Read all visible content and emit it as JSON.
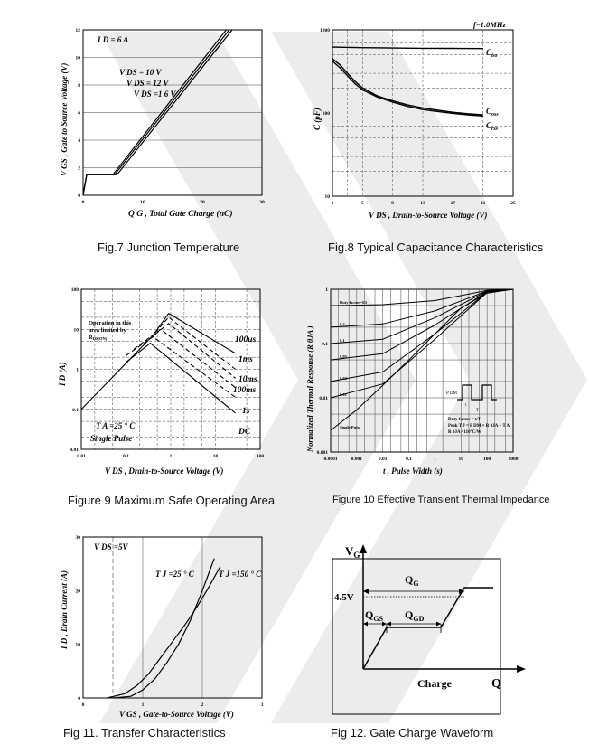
{
  "captions": {
    "fig7": "Fig.7 Junction Temperature",
    "fig8": "Fig.8 Typical Capacitance Characteristics",
    "fig9": "Figure 9 Maximum Safe Operating Area",
    "fig10": "Figure 10 Effective Transient Thermal Impedance",
    "fig11": "Fig 11. Transfer Characteristics",
    "fig12": "Fig 12. Gate Charge Waveform"
  },
  "chart_data": [
    {
      "id": "fig7",
      "type": "line",
      "xlabel": "Q G , Total Gate Charge (nC)",
      "ylabel": "V GS , Gate to Source Voltage (V)",
      "xlim": [
        0,
        30
      ],
      "ylim": [
        0,
        12
      ],
      "xticks": [
        "0",
        "10",
        "20",
        "30"
      ],
      "yticks": [
        "0",
        "2",
        "4",
        "6",
        "8",
        "10",
        "12"
      ],
      "annotations": [
        "I D = 6 A",
        "V DS = 10 V",
        "V DS = 12 V",
        "V DS =1 6 V"
      ],
      "series": [
        {
          "name": "V DS = 10 V",
          "x": [
            0,
            0.6,
            5.0,
            24.0
          ],
          "y": [
            0,
            1.5,
            1.5,
            12
          ]
        },
        {
          "name": "V DS = 12 V",
          "x": [
            0,
            0.6,
            5.3,
            24.5
          ],
          "y": [
            0,
            1.5,
            1.5,
            12
          ]
        },
        {
          "name": "V DS =1 6 V",
          "x": [
            0,
            0.6,
            5.7,
            25.0
          ],
          "y": [
            0,
            1.5,
            1.5,
            12
          ]
        }
      ]
    },
    {
      "id": "fig8",
      "type": "line",
      "title": "f=1.0MHz",
      "xlabel": "V DS , Drain-to-Source Voltage (V)",
      "ylabel": "C (pF)",
      "xlim": [
        1,
        25
      ],
      "ylim": [
        10,
        1000
      ],
      "yscale": "log",
      "xticks": [
        "1",
        "5",
        "9",
        "13",
        "17",
        "21",
        "25"
      ],
      "yticks": [
        "10",
        "100",
        "1000"
      ],
      "series": [
        {
          "name": "C iss",
          "x": [
            1,
            5,
            9,
            13,
            17,
            21
          ],
          "y": [
            620,
            610,
            605,
            600,
            598,
            595
          ]
        },
        {
          "name": "C oss",
          "x": [
            1,
            2,
            3,
            4,
            5,
            7,
            9,
            11,
            13,
            15,
            17,
            19,
            21
          ],
          "y": [
            450,
            380,
            300,
            240,
            200,
            160,
            140,
            125,
            115,
            108,
            102,
            98,
            95
          ]
        },
        {
          "name": "C rss",
          "x": [
            1,
            2,
            3,
            4,
            5,
            7,
            9,
            11,
            13,
            15,
            17,
            19,
            21
          ],
          "y": [
            420,
            350,
            280,
            225,
            190,
            155,
            135,
            120,
            110,
            104,
            99,
            95,
            92
          ]
        }
      ]
    },
    {
      "id": "fig9",
      "type": "line",
      "xlabel": "V DS , Drain-to-Source Voltage (V)",
      "ylabel": "I D (A)",
      "xscale": "log",
      "yscale": "log",
      "xlim": [
        0.01,
        100
      ],
      "ylim": [
        0.01,
        100
      ],
      "xticks": [
        "0.01",
        "0.1",
        "1",
        "10",
        "100"
      ],
      "yticks": [
        "0.01",
        "0.1",
        "1",
        "10",
        "100"
      ],
      "annotations": [
        "Operation in this area limited by R DS(ON)",
        "T A =25 ° C",
        "Single Pulse"
      ],
      "series": [
        {
          "name": "100us",
          "x": [
            0.01,
            0.4,
            0.9,
            28
          ],
          "y": [
            0.1,
            7,
            25,
            2.5
          ]
        },
        {
          "name": "1ms",
          "x": [
            0.35,
            0.9,
            28
          ],
          "y": [
            6,
            20,
            1.0
          ]
        },
        {
          "name": "10ms",
          "x": [
            0.25,
            0.9,
            28
          ],
          "y": [
            4.5,
            14,
            0.6
          ]
        },
        {
          "name": "100ms",
          "x": [
            0.15,
            0.6,
            28
          ],
          "y": [
            3.2,
            10,
            0.35
          ]
        },
        {
          "name": "1s",
          "x": [
            0.1,
            0.4,
            28
          ],
          "y": [
            2.2,
            6.5,
            0.2
          ]
        },
        {
          "name": "DC",
          "x": [
            0.1,
            0.35,
            28
          ],
          "y": [
            1.5,
            4.5,
            0.08
          ]
        }
      ]
    },
    {
      "id": "fig10",
      "type": "line",
      "xlabel": "t , Pulse Width (s)",
      "ylabel": "Normalized Thermal Response (R θJA )",
      "xscale": "log",
      "yscale": "log",
      "xlim": [
        0.0001,
        1000
      ],
      "ylim": [
        0.001,
        1
      ],
      "xticks": [
        "0.0001",
        "0.001",
        "0.01",
        "0.1",
        "1",
        "10",
        "100",
        "1000"
      ],
      "yticks": [
        "0.001",
        "0.01",
        "0.1",
        "1"
      ],
      "annotations": [
        "Duty factor = t/T",
        "Peak T J = P DM × R θJA + T A",
        "R θJA =110°C/W",
        "P DM",
        "t",
        "T"
      ],
      "series": [
        {
          "name": "Duty factor=0.5",
          "x": [
            0.0001,
            0.01,
            1,
            100,
            1000
          ],
          "y": [
            0.5,
            0.52,
            0.62,
            0.95,
            1
          ]
        },
        {
          "name": "0.2",
          "x": [
            0.0001,
            0.01,
            1,
            100,
            1000
          ],
          "y": [
            0.2,
            0.23,
            0.4,
            0.93,
            1
          ]
        },
        {
          "name": "0.1",
          "x": [
            0.0001,
            0.01,
            1,
            100,
            1000
          ],
          "y": [
            0.1,
            0.12,
            0.3,
            0.92,
            1
          ]
        },
        {
          "name": "0.05",
          "x": [
            0.0001,
            0.01,
            1,
            100,
            1000
          ],
          "y": [
            0.05,
            0.065,
            0.22,
            0.9,
            1
          ]
        },
        {
          "name": "0.02",
          "x": [
            0.0001,
            0.01,
            1,
            100,
            1000
          ],
          "y": [
            0.02,
            0.03,
            0.15,
            0.88,
            1
          ]
        },
        {
          "name": "0.01",
          "x": [
            0.0001,
            0.01,
            1,
            100,
            1000
          ],
          "y": [
            0.01,
            0.018,
            0.12,
            0.87,
            1
          ]
        },
        {
          "name": "Single Pulse",
          "x": [
            0.0001,
            0.001,
            0.01,
            0.1,
            1,
            10,
            100,
            1000
          ],
          "y": [
            0.0025,
            0.006,
            0.017,
            0.05,
            0.15,
            0.45,
            0.85,
            1
          ]
        }
      ]
    },
    {
      "id": "fig11",
      "type": "line",
      "xlabel": "V GS , Gate-to-Source Voltage (V)",
      "ylabel": "I D , Drain Current (A)",
      "xlim": [
        0,
        3
      ],
      "ylim": [
        0,
        30
      ],
      "xticks": [
        "0",
        "1",
        "2",
        "3"
      ],
      "yticks": [
        "0",
        "10",
        "20",
        "30"
      ],
      "annotations": [
        "V DS =5V",
        "T J =25 ° C",
        "T J =150 ° C"
      ],
      "series": [
        {
          "name": "T J =25 ° C",
          "x": [
            0.5,
            0.8,
            1.0,
            1.2,
            1.4,
            1.6,
            1.8,
            2.0,
            2.2
          ],
          "y": [
            0,
            0.3,
            1.5,
            3.5,
            6.5,
            10,
            14.5,
            20,
            26
          ]
        },
        {
          "name": "T J =150 ° C",
          "x": [
            0.4,
            0.7,
            0.9,
            1.1,
            1.3,
            1.5,
            1.7,
            1.9,
            2.1,
            2.3
          ],
          "y": [
            0,
            0.8,
            2.3,
            4.5,
            7.5,
            10.5,
            13.5,
            16.8,
            20.5,
            24.5
          ]
        }
      ]
    },
    {
      "id": "fig12",
      "type": "line",
      "xlabel": "Charge",
      "axis_x": "Q",
      "axis_y": "V G",
      "labels": [
        "4.5V",
        "Q G",
        "Q GS",
        "Q GD"
      ]
    }
  ]
}
